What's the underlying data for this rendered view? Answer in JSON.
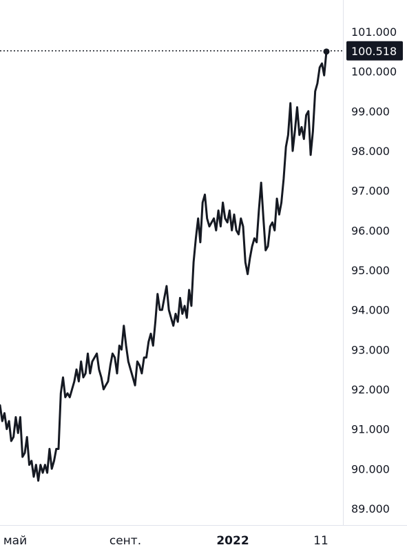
{
  "chart_data": {
    "type": "line",
    "title": "",
    "xlabel": "",
    "ylabel": "",
    "x_ticks": [
      "май",
      "сент.",
      "2022",
      "11"
    ],
    "y_ticks": [
      "89.000",
      "90.000",
      "91.000",
      "92.000",
      "93.000",
      "94.000",
      "95.000",
      "96.000",
      "97.000",
      "98.000",
      "99.000",
      "100.000",
      "101.000"
    ],
    "ylim": [
      88.5,
      101.5
    ],
    "grid": false,
    "last_value_label": "100.518",
    "series": [
      {
        "values": [
          91.6,
          91.2,
          91.4,
          91.0,
          91.2,
          90.7,
          90.8,
          91.3,
          90.9,
          91.3,
          90.3,
          90.4,
          90.8,
          90.1,
          90.2,
          89.8,
          90.1,
          89.7,
          90.1,
          89.9,
          90.1,
          89.9,
          90.5,
          90.0,
          90.2,
          90.5,
          90.5,
          91.9,
          92.3,
          91.8,
          91.9,
          91.8,
          92.0,
          92.2,
          92.5,
          92.2,
          92.7,
          92.3,
          92.4,
          92.9,
          92.4,
          92.7,
          92.8,
          92.9,
          92.5,
          92.3,
          92.0,
          92.1,
          92.2,
          92.6,
          92.9,
          92.8,
          92.4,
          93.1,
          93.0,
          93.6,
          93.1,
          92.7,
          92.5,
          92.3,
          92.1,
          92.7,
          92.6,
          92.4,
          92.8,
          92.8,
          93.2,
          93.4,
          93.1,
          93.7,
          94.4,
          94.0,
          94.0,
          94.3,
          94.6,
          94.0,
          93.8,
          93.6,
          93.9,
          93.7,
          94.3,
          93.9,
          94.1,
          93.8,
          94.5,
          94.1,
          95.2,
          95.8,
          96.3,
          95.7,
          96.7,
          96.9,
          96.3,
          96.1,
          96.2,
          96.3,
          96.0,
          96.5,
          96.1,
          96.7,
          96.3,
          96.2,
          96.5,
          96.0,
          96.4,
          96.0,
          95.9,
          96.3,
          96.1,
          95.2,
          94.9,
          95.3,
          95.6,
          95.8,
          95.7,
          96.5,
          97.2,
          96.3,
          95.5,
          95.6,
          96.1,
          96.2,
          96.0,
          96.8,
          96.4,
          96.7,
          97.3,
          98.1,
          98.4,
          99.2,
          98.0,
          98.5,
          99.1,
          98.4,
          98.6,
          98.3,
          98.9,
          99.0,
          97.9,
          98.5,
          99.5,
          99.7,
          100.1,
          100.2,
          99.9,
          100.5
        ]
      }
    ]
  },
  "colors": {
    "line": "#151922",
    "axis_text": "#131722",
    "label_bg": "#131722",
    "label_text": "#ffffff",
    "border": "#e0e3eb"
  }
}
